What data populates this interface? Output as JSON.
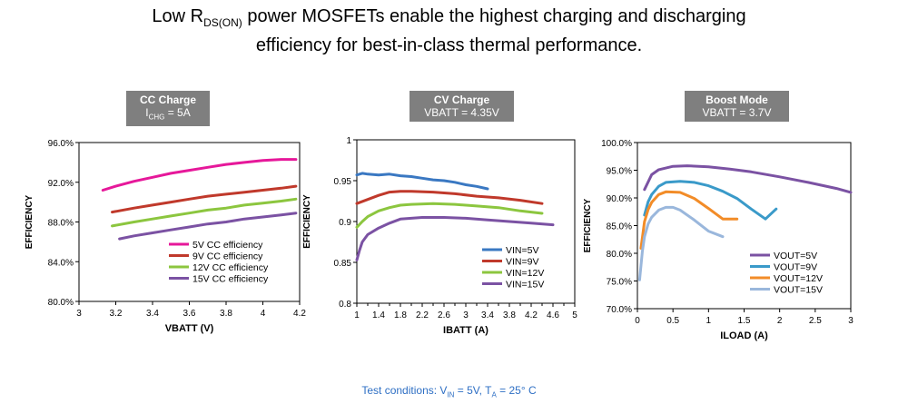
{
  "headline": {
    "pre": "Low R",
    "sub": "DS(ON)",
    "post": " power MOSFETs enable the highest charging and discharging",
    "line2": "efficiency for best-in-class thermal performance."
  },
  "footer": {
    "pre": "Test conditions:  V",
    "sub1": "IN",
    "mid": " = 5V, T",
    "sub2": "A",
    "post": " = 25° C"
  },
  "badges": [
    {
      "title": "CC Charge",
      "line_pre": "I",
      "line_sub": "CHG",
      "line_post": " = 5A"
    },
    {
      "title": "CV Charge",
      "line_pre": "VBATT = 4.35V",
      "line_sub": "",
      "line_post": ""
    },
    {
      "title": "Boost Mode",
      "line_pre": "VBATT = 3.7V",
      "line_sub": "",
      "line_post": ""
    }
  ],
  "colors": {
    "magenta": "#e6189a",
    "red": "#c0392b",
    "green": "#8cc63f",
    "purple": "#7b52a3",
    "blue": "#3a78c2",
    "orange": "#f28c28",
    "lightblue": "#9ab7dc",
    "badge": "#7f7f7f",
    "footer_text": "#2e6fc4"
  },
  "chart_data": [
    {
      "type": "line",
      "xlabel": "VBATT (V)",
      "ylabel": "EFFICIENCY",
      "xlim": [
        3,
        4.2
      ],
      "ylim": [
        80,
        96
      ],
      "xticks": [
        "3",
        "3.2",
        "3.4",
        "3.6",
        "3.8",
        "4",
        "4.2"
      ],
      "yticks": [
        "80.0%",
        "84.0%",
        "88.0%",
        "92.0%",
        "96.0%"
      ],
      "legend": "bottom-right",
      "series": [
        {
          "name": "5V CC efficiency",
          "color": "#e6189a",
          "x": [
            3.13,
            3.2,
            3.3,
            3.4,
            3.5,
            3.6,
            3.7,
            3.8,
            3.9,
            4.0,
            4.1,
            4.18
          ],
          "y": [
            91.2,
            91.6,
            92.1,
            92.5,
            92.9,
            93.2,
            93.5,
            93.8,
            94.0,
            94.2,
            94.3,
            94.3
          ]
        },
        {
          "name": "9V CC efficiency",
          "color": "#c0392b",
          "x": [
            3.18,
            3.3,
            3.4,
            3.5,
            3.6,
            3.7,
            3.8,
            3.9,
            4.0,
            4.1,
            4.18
          ],
          "y": [
            89.0,
            89.4,
            89.7,
            90.0,
            90.3,
            90.6,
            90.8,
            91.0,
            91.2,
            91.4,
            91.6
          ]
        },
        {
          "name": "12V CC efficiency",
          "color": "#8cc63f",
          "x": [
            3.18,
            3.3,
            3.4,
            3.5,
            3.6,
            3.7,
            3.8,
            3.9,
            4.0,
            4.1,
            4.18
          ],
          "y": [
            87.6,
            88.0,
            88.3,
            88.6,
            88.9,
            89.2,
            89.4,
            89.7,
            89.9,
            90.1,
            90.3
          ]
        },
        {
          "name": "15V CC efficiency",
          "color": "#7b52a3",
          "x": [
            3.22,
            3.3,
            3.4,
            3.5,
            3.6,
            3.7,
            3.8,
            3.9,
            4.0,
            4.1,
            4.18
          ],
          "y": [
            86.3,
            86.6,
            86.9,
            87.2,
            87.5,
            87.8,
            88.0,
            88.3,
            88.5,
            88.7,
            88.9
          ]
        }
      ]
    },
    {
      "type": "line",
      "xlabel": "IBATT (A)",
      "ylabel": "EFFICIENCY",
      "xlim": [
        1,
        5
      ],
      "ylim": [
        0.8,
        1
      ],
      "xticks": [
        "1",
        "1.4",
        "1.8",
        "2.2",
        "2.6",
        "3",
        "3.4",
        "3.8",
        "4.2",
        "4.6",
        "5"
      ],
      "xtick_values": [
        1,
        1.4,
        1.8,
        2.2,
        2.6,
        3,
        3.4,
        3.8,
        4.2,
        4.6,
        5
      ],
      "xtick_minor": [
        1.2,
        1.6,
        2.0,
        2.4,
        2.8,
        3.2,
        3.6,
        4.0,
        4.4,
        4.8
      ],
      "yticks": [
        "0.8",
        "0.85",
        "0.9",
        "0.95",
        "1"
      ],
      "legend": "bottom-right",
      "series": [
        {
          "name": "VIN=5V",
          "color": "#3a78c2",
          "x": [
            1.0,
            1.1,
            1.2,
            1.4,
            1.6,
            1.8,
            2.0,
            2.2,
            2.4,
            2.6,
            2.8,
            3.0,
            3.2,
            3.4
          ],
          "y": [
            0.957,
            0.959,
            0.958,
            0.957,
            0.958,
            0.956,
            0.955,
            0.953,
            0.951,
            0.95,
            0.948,
            0.945,
            0.943,
            0.94
          ]
        },
        {
          "name": "VIN=9V",
          "color": "#c0392b",
          "x": [
            1.0,
            1.2,
            1.4,
            1.6,
            1.8,
            2.0,
            2.4,
            2.8,
            3.2,
            3.6,
            4.0,
            4.4
          ],
          "y": [
            0.922,
            0.927,
            0.932,
            0.936,
            0.937,
            0.937,
            0.936,
            0.934,
            0.931,
            0.929,
            0.926,
            0.922
          ]
        },
        {
          "name": "VIN=12V",
          "color": "#8cc63f",
          "x": [
            1.0,
            1.1,
            1.2,
            1.4,
            1.6,
            1.8,
            2.0,
            2.4,
            2.8,
            3.2,
            3.6,
            4.0,
            4.4
          ],
          "y": [
            0.893,
            0.9,
            0.906,
            0.913,
            0.917,
            0.92,
            0.921,
            0.922,
            0.921,
            0.919,
            0.917,
            0.913,
            0.91
          ]
        },
        {
          "name": "VIN=15V",
          "color": "#7b52a3",
          "x": [
            1.0,
            1.05,
            1.1,
            1.2,
            1.4,
            1.6,
            1.8,
            2.0,
            2.2,
            2.6,
            3.0,
            3.4,
            3.8,
            4.2,
            4.6
          ],
          "y": [
            0.853,
            0.865,
            0.875,
            0.884,
            0.892,
            0.898,
            0.903,
            0.904,
            0.905,
            0.905,
            0.904,
            0.902,
            0.9,
            0.898,
            0.896
          ]
        }
      ]
    },
    {
      "type": "line",
      "xlabel": "ILOAD (A)",
      "ylabel": "EFFICIENCY",
      "xlim": [
        0,
        3
      ],
      "ylim": [
        70,
        100
      ],
      "xticks": [
        "0",
        "0.5",
        "1",
        "1.5",
        "2",
        "2.5",
        "3"
      ],
      "yticks": [
        "70.0%",
        "75.0%",
        "80.0%",
        "85.0%",
        "90.0%",
        "95.0%",
        "100.0%"
      ],
      "legend": "bottom-right",
      "series": [
        {
          "name": "VOUT=5V",
          "color": "#7b52a3",
          "x": [
            0.1,
            0.2,
            0.3,
            0.5,
            0.7,
            1.0,
            1.3,
            1.6,
            2.0,
            2.4,
            2.8,
            3.0
          ],
          "y": [
            91.5,
            94.2,
            95.1,
            95.7,
            95.8,
            95.6,
            95.2,
            94.7,
            93.8,
            92.8,
            91.7,
            91.0
          ]
        },
        {
          "name": "VOUT=9V",
          "color": "#3a9ac9",
          "x": [
            0.1,
            0.15,
            0.2,
            0.3,
            0.4,
            0.6,
            0.8,
            1.0,
            1.2,
            1.4,
            1.6,
            1.8,
            1.95
          ],
          "y": [
            86.9,
            89.3,
            90.6,
            92.1,
            92.8,
            93.0,
            92.8,
            92.2,
            91.2,
            89.9,
            88.0,
            86.2,
            88.0
          ]
        },
        {
          "name": "VOUT=12V",
          "color": "#f28c28",
          "x": [
            0.05,
            0.1,
            0.15,
            0.2,
            0.3,
            0.4,
            0.6,
            0.8,
            1.0,
            1.2,
            1.4
          ],
          "y": [
            80.9,
            85.7,
            87.9,
            89.2,
            90.6,
            91.1,
            91.0,
            89.9,
            88.1,
            86.2,
            86.2
          ]
        },
        {
          "name": "VOUT=15V",
          "color": "#9ab7dc",
          "x": [
            0.03,
            0.07,
            0.1,
            0.15,
            0.2,
            0.3,
            0.4,
            0.5,
            0.6,
            0.8,
            1.0,
            1.2
          ],
          "y": [
            75.2,
            80.4,
            83.0,
            85.3,
            86.5,
            87.8,
            88.3,
            88.3,
            87.8,
            86.0,
            84.0,
            83.0
          ]
        }
      ]
    }
  ]
}
